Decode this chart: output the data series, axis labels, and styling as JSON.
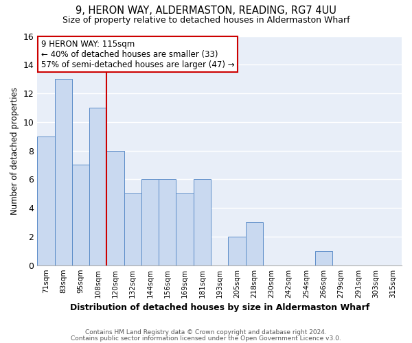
{
  "title": "9, HERON WAY, ALDERMASTON, READING, RG7 4UU",
  "subtitle": "Size of property relative to detached houses in Aldermaston Wharf",
  "xlabel": "Distribution of detached houses by size in Aldermaston Wharf",
  "ylabel": "Number of detached properties",
  "categories": [
    "71sqm",
    "83sqm",
    "95sqm",
    "108sqm",
    "120sqm",
    "132sqm",
    "144sqm",
    "156sqm",
    "169sqm",
    "181sqm",
    "193sqm",
    "205sqm",
    "218sqm",
    "230sqm",
    "242sqm",
    "254sqm",
    "266sqm",
    "279sqm",
    "291sqm",
    "303sqm",
    "315sqm"
  ],
  "values": [
    9,
    13,
    7,
    11,
    8,
    5,
    6,
    6,
    5,
    6,
    0,
    2,
    3,
    0,
    0,
    0,
    1,
    0,
    0,
    0,
    0
  ],
  "bar_color": "#c9d9f0",
  "bar_edge_color": "#5b8cc8",
  "vline_x_index": 4,
  "vline_color": "#cc0000",
  "annotation_text": "9 HERON WAY: 115sqm\n← 40% of detached houses are smaller (33)\n57% of semi-detached houses are larger (47) →",
  "annotation_box_color": "#ffffff",
  "annotation_box_edge": "#cc0000",
  "ylim": [
    0,
    16
  ],
  "yticks": [
    0,
    2,
    4,
    6,
    8,
    10,
    12,
    14,
    16
  ],
  "footnote1": "Contains HM Land Registry data © Crown copyright and database right 2024.",
  "footnote2": "Contains public sector information licensed under the Open Government Licence v3.0.",
  "plot_bg_color": "#e8eef8",
  "fig_bg_color": "#ffffff",
  "grid_color": "#ffffff"
}
